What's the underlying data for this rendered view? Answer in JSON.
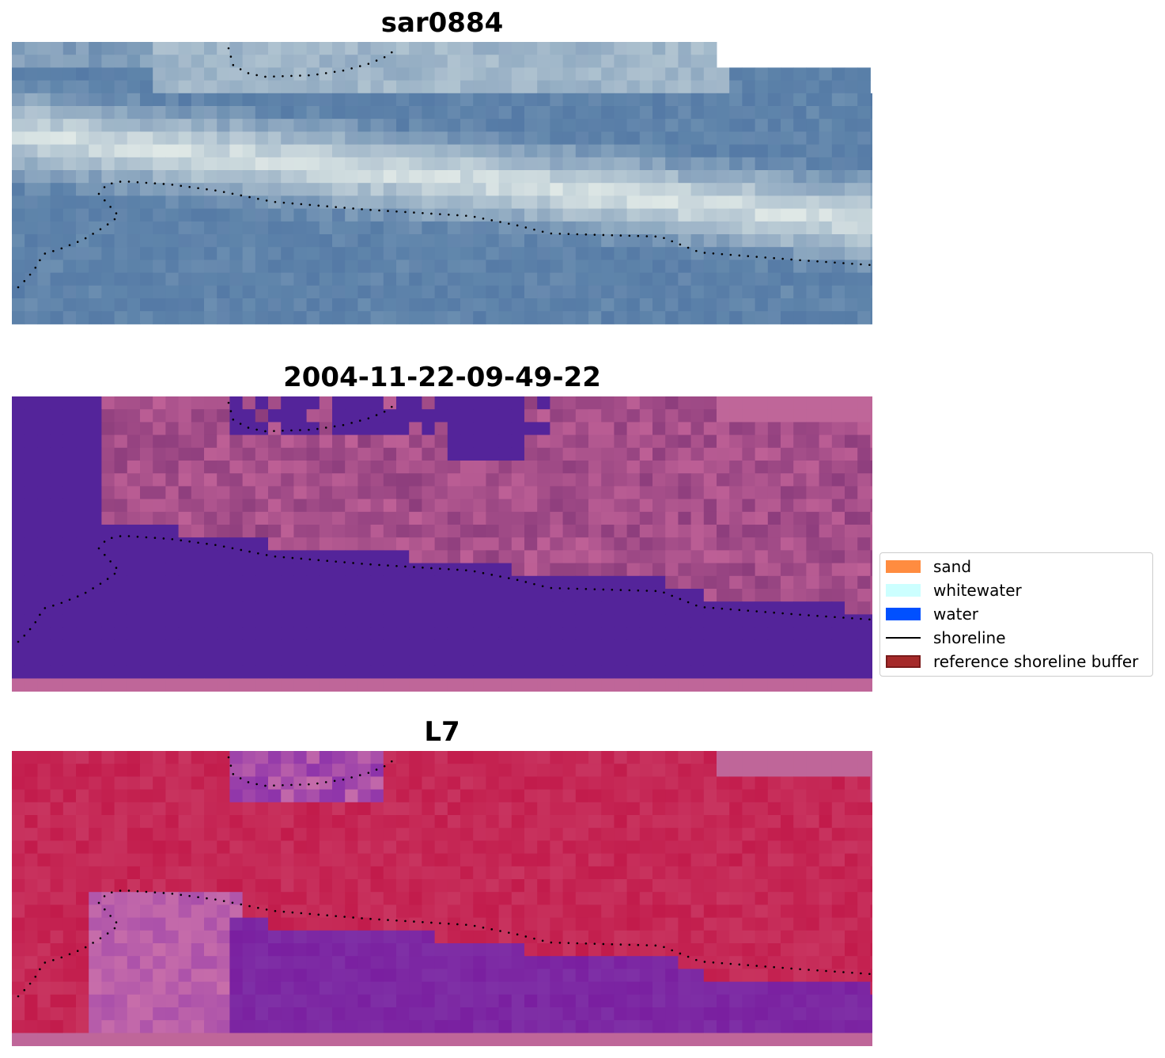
{
  "panels": [
    {
      "title": "sar0884",
      "kind": "rgb"
    },
    {
      "title": "2004-11-22-09-49-22",
      "kind": "classified"
    },
    {
      "title": "L7",
      "kind": "index"
    }
  ],
  "legend": {
    "items": [
      {
        "label": "sand",
        "color": "#ff8c40"
      },
      {
        "label": "whitewater",
        "color": "#ccffff"
      },
      {
        "label": "water",
        "color": "#0050ff"
      },
      {
        "label": "shoreline",
        "color": "#000000",
        "type": "line"
      },
      {
        "label": "reference shoreline buffer",
        "color": "#a52a2a",
        "type": "patch"
      }
    ]
  },
  "colors": {
    "water_class": "#54249a",
    "nodata_mask": "#bf6699",
    "rgb_water": "#5f85ab",
    "rgb_whitewater": "#dfe8e6",
    "index_high": "#c21b4b",
    "index_low": "#7a1fa0"
  }
}
